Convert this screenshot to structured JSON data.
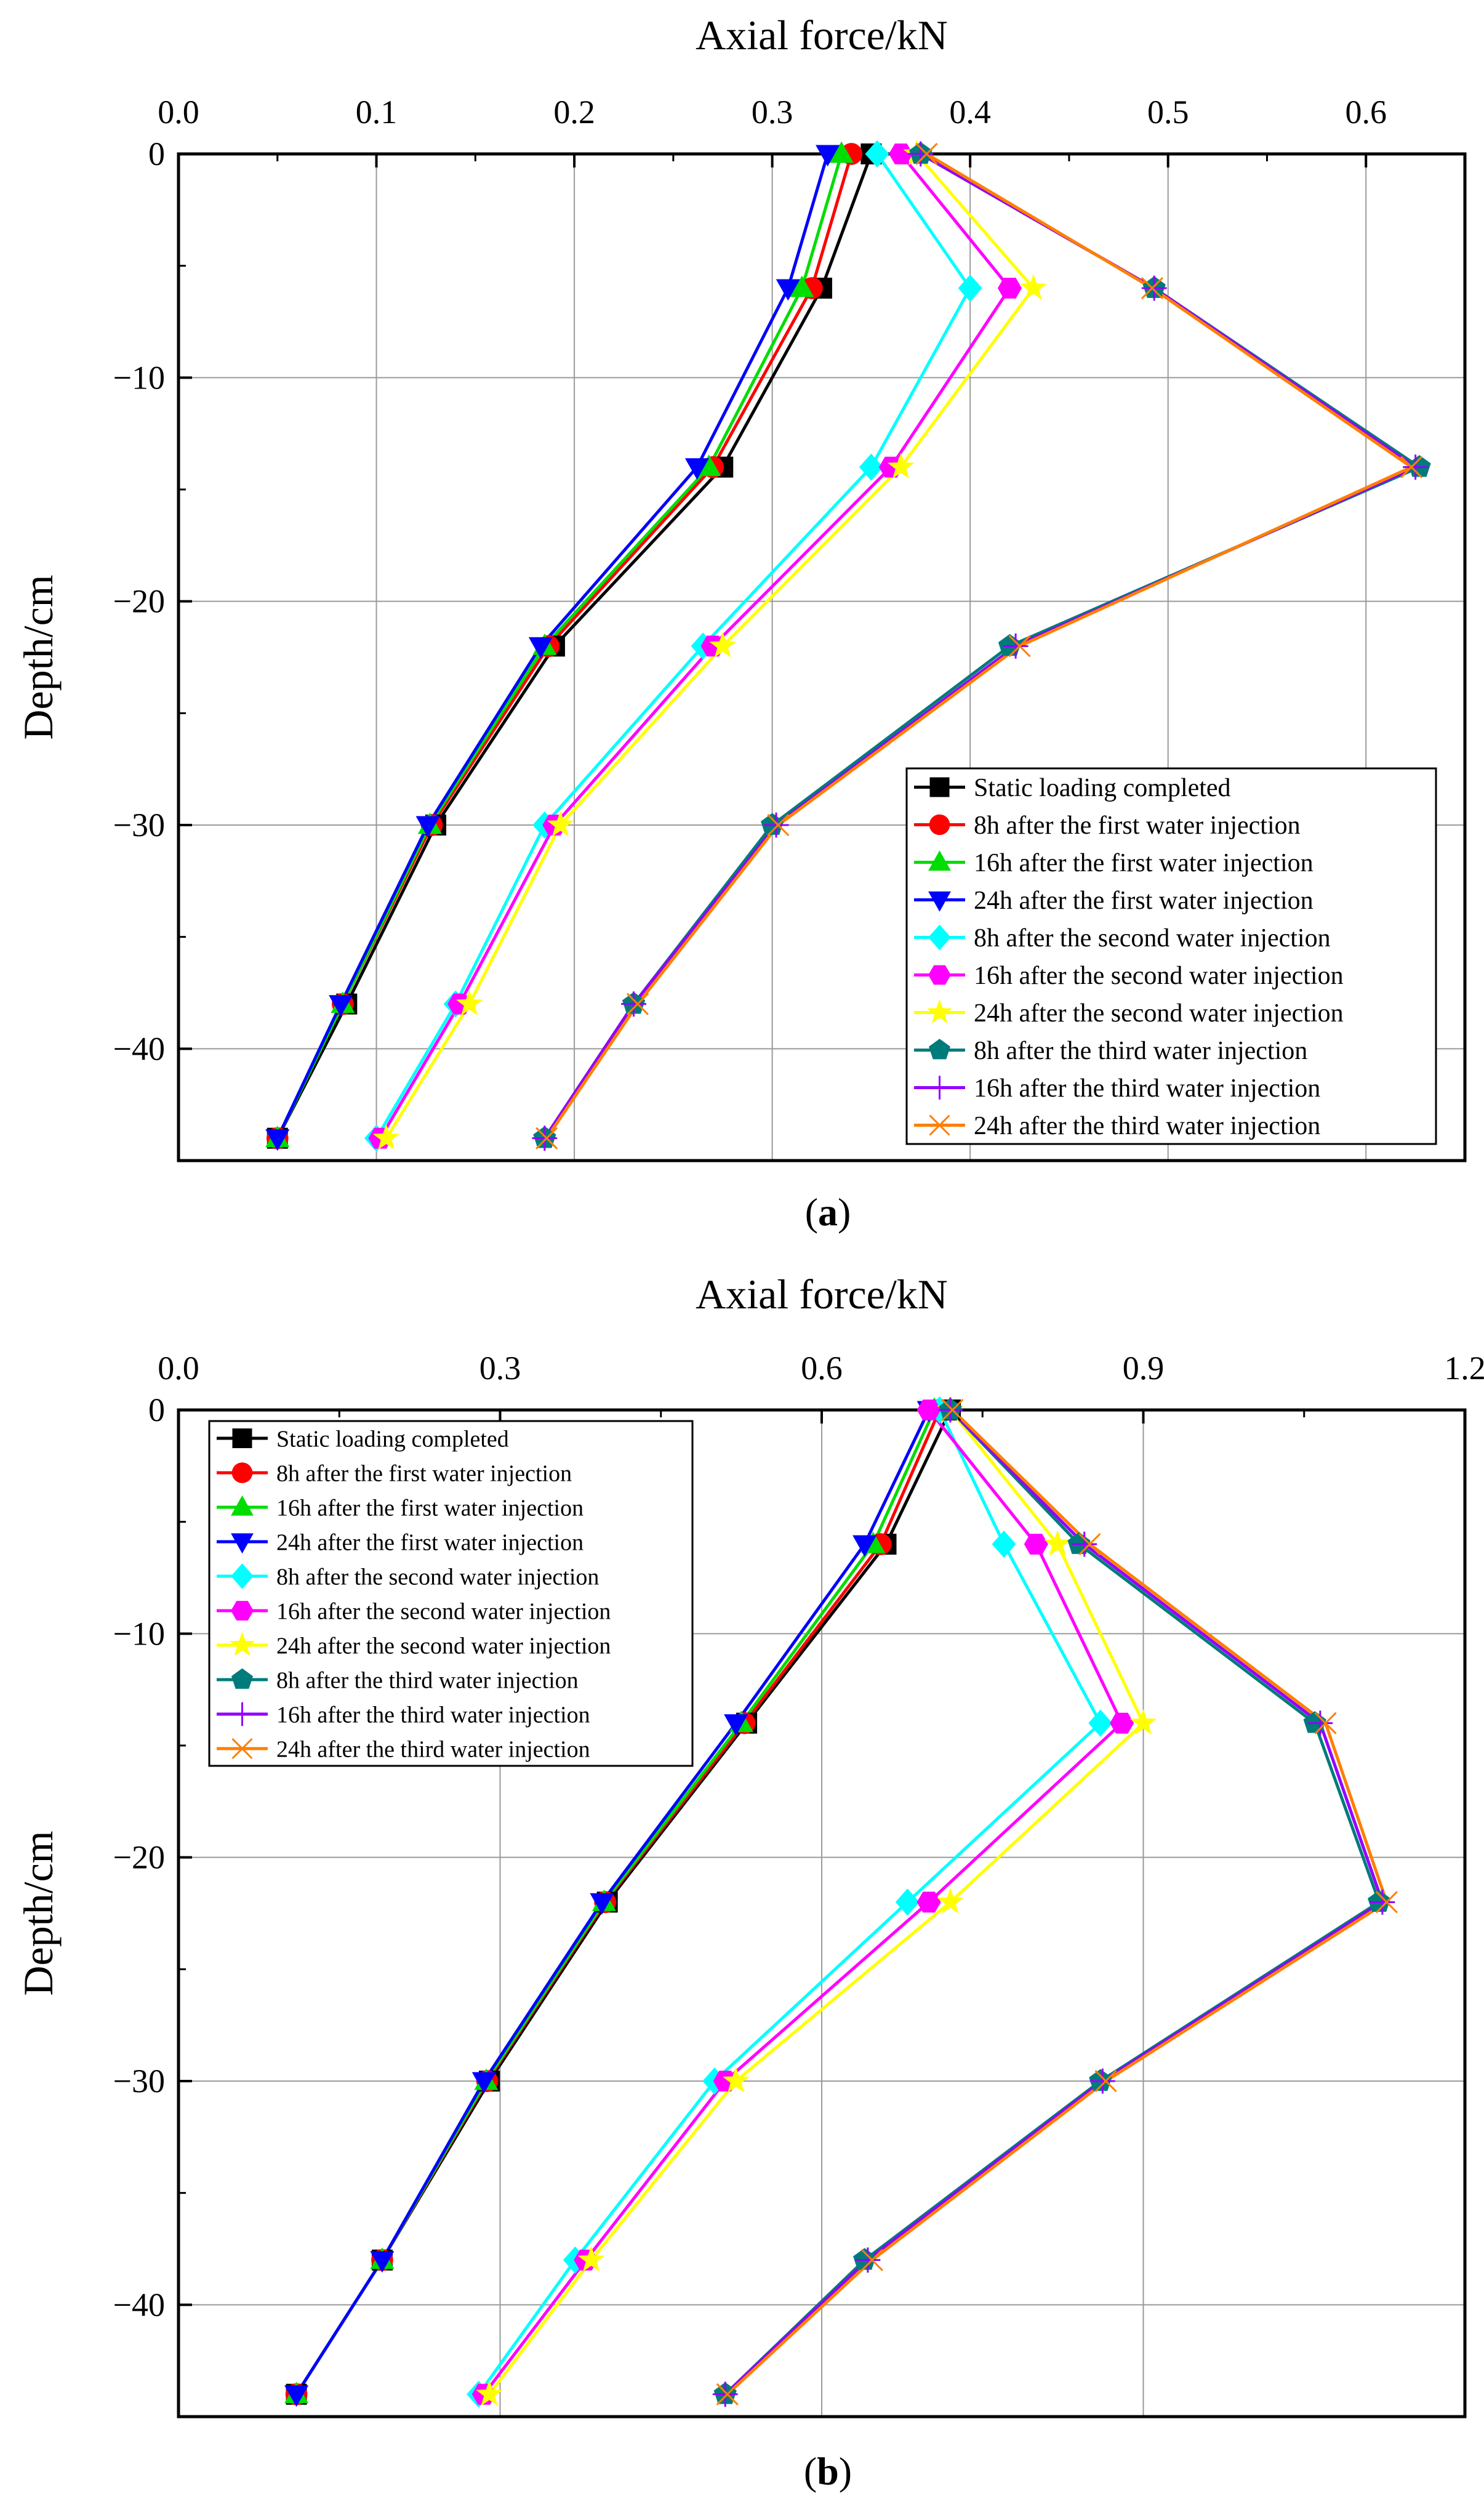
{
  "chart_data": [
    {
      "type": "line",
      "panel_label": "(a)",
      "title": "",
      "xlabel": "Axial force/kN",
      "ylabel": "Depth/cm",
      "xlim": [
        0.0,
        0.65
      ],
      "ylim": [
        -45,
        0
      ],
      "xticks": [
        "0.0",
        "0.1",
        "0.2",
        "0.3",
        "0.4",
        "0.5",
        "0.6"
      ],
      "xtick_values": [
        0.0,
        0.1,
        0.2,
        0.3,
        0.4,
        0.5,
        0.6
      ],
      "yticks": [
        "0",
        "−10",
        "−20",
        "−30",
        "−40"
      ],
      "ytick_values": [
        0,
        -10,
        -20,
        -30,
        -40
      ],
      "grid": true,
      "legend_position": "bottom-right",
      "depths": [
        0,
        -6,
        -14,
        -22,
        -30,
        -38,
        -44
      ],
      "series": [
        {
          "name": "Static loading completed",
          "color": "#000000",
          "marker": "square",
          "values": [
            0.35,
            0.325,
            0.275,
            0.19,
            0.13,
            0.085,
            0.05
          ]
        },
        {
          "name": "8h after the first water injection",
          "color": "#ff0000",
          "marker": "circle",
          "values": [
            0.34,
            0.32,
            0.27,
            0.187,
            0.128,
            0.083,
            0.05
          ]
        },
        {
          "name": "16h after the first water injection",
          "color": "#00dd00",
          "marker": "triangle-up",
          "values": [
            0.335,
            0.315,
            0.268,
            0.185,
            0.127,
            0.083,
            0.05
          ]
        },
        {
          "name": "24h after the first water injection",
          "color": "#0000ff",
          "marker": "triangle-down",
          "values": [
            0.328,
            0.308,
            0.262,
            0.183,
            0.126,
            0.082,
            0.05
          ]
        },
        {
          "name": "8h after the second water injection",
          "color": "#00ffff",
          "marker": "diamond",
          "values": [
            0.353,
            0.4,
            0.35,
            0.265,
            0.185,
            0.14,
            0.1
          ]
        },
        {
          "name": "16h after the second water injection",
          "color": "#ff00ff",
          "marker": "hexagon",
          "values": [
            0.365,
            0.42,
            0.36,
            0.27,
            0.19,
            0.142,
            0.102
          ]
        },
        {
          "name": "24h after the second water injection",
          "color": "#ffff00",
          "marker": "star",
          "values": [
            0.373,
            0.432,
            0.365,
            0.275,
            0.193,
            0.147,
            0.105
          ]
        },
        {
          "name": "8h after the third water injection",
          "color": "#007b7b",
          "marker": "pentagon",
          "values": [
            0.375,
            0.493,
            0.627,
            0.42,
            0.3,
            0.23,
            0.185
          ]
        },
        {
          "name": "16h after the third water injection",
          "color": "#9400ff",
          "marker": "plus",
          "values": [
            0.375,
            0.493,
            0.625,
            0.423,
            0.302,
            0.23,
            0.185
          ]
        },
        {
          "name": "24h after the third water injection",
          "color": "#ff7f00",
          "marker": "x",
          "values": [
            0.378,
            0.492,
            0.623,
            0.425,
            0.303,
            0.232,
            0.186
          ]
        }
      ]
    },
    {
      "type": "line",
      "panel_label": "(b)",
      "title": "",
      "xlabel": "Axial force/kN",
      "ylabel": "Depth/cm",
      "xlim": [
        0.0,
        1.2
      ],
      "ylim": [
        -45,
        0
      ],
      "xticks": [
        "0.0",
        "0.3",
        "0.6",
        "0.9",
        "1.2"
      ],
      "xtick_values": [
        0.0,
        0.3,
        0.6,
        0.9,
        1.2
      ],
      "yticks": [
        "0",
        "−10",
        "−20",
        "−30",
        "−40"
      ],
      "ytick_values": [
        0,
        -10,
        -20,
        -30,
        -40
      ],
      "grid": true,
      "legend_position": "top-left",
      "depths": [
        0,
        -6,
        -14,
        -22,
        -30,
        -38,
        -44
      ],
      "series": [
        {
          "name": "Static loading completed",
          "color": "#000000",
          "marker": "square",
          "values": [
            0.72,
            0.66,
            0.53,
            0.4,
            0.29,
            0.19,
            0.11
          ]
        },
        {
          "name": "8h after the first water injection",
          "color": "#ff0000",
          "marker": "circle",
          "values": [
            0.71,
            0.655,
            0.528,
            0.398,
            0.288,
            0.19,
            0.11
          ]
        },
        {
          "name": "16h after the first water injection",
          "color": "#00dd00",
          "marker": "triangle-up",
          "values": [
            0.705,
            0.648,
            0.525,
            0.397,
            0.287,
            0.19,
            0.11
          ]
        },
        {
          "name": "24h after the first water injection",
          "color": "#0000ff",
          "marker": "triangle-down",
          "values": [
            0.7,
            0.64,
            0.52,
            0.395,
            0.285,
            0.19,
            0.11
          ]
        },
        {
          "name": "8h after the second water injection",
          "color": "#00ffff",
          "marker": "diamond",
          "values": [
            0.71,
            0.77,
            0.86,
            0.68,
            0.5,
            0.37,
            0.28
          ]
        },
        {
          "name": "16h after the second water injection",
          "color": "#ff00ff",
          "marker": "hexagon",
          "values": [
            0.7,
            0.8,
            0.88,
            0.7,
            0.51,
            0.38,
            0.285
          ]
        },
        {
          "name": "24h after the second water injection",
          "color": "#ffff00",
          "marker": "star",
          "values": [
            0.72,
            0.82,
            0.9,
            0.72,
            0.52,
            0.385,
            0.29
          ]
        },
        {
          "name": "8h after the third water injection",
          "color": "#007b7b",
          "marker": "pentagon",
          "values": [
            0.72,
            0.84,
            1.06,
            1.12,
            0.86,
            0.64,
            0.51
          ]
        },
        {
          "name": "16h after the third water injection",
          "color": "#9400ff",
          "marker": "plus",
          "values": [
            0.72,
            0.845,
            1.065,
            1.123,
            0.862,
            0.643,
            0.51
          ]
        },
        {
          "name": "24h after the third water injection",
          "color": "#ff7f00",
          "marker": "x",
          "values": [
            0.722,
            0.85,
            1.07,
            1.127,
            0.865,
            0.647,
            0.512
          ]
        }
      ]
    }
  ]
}
